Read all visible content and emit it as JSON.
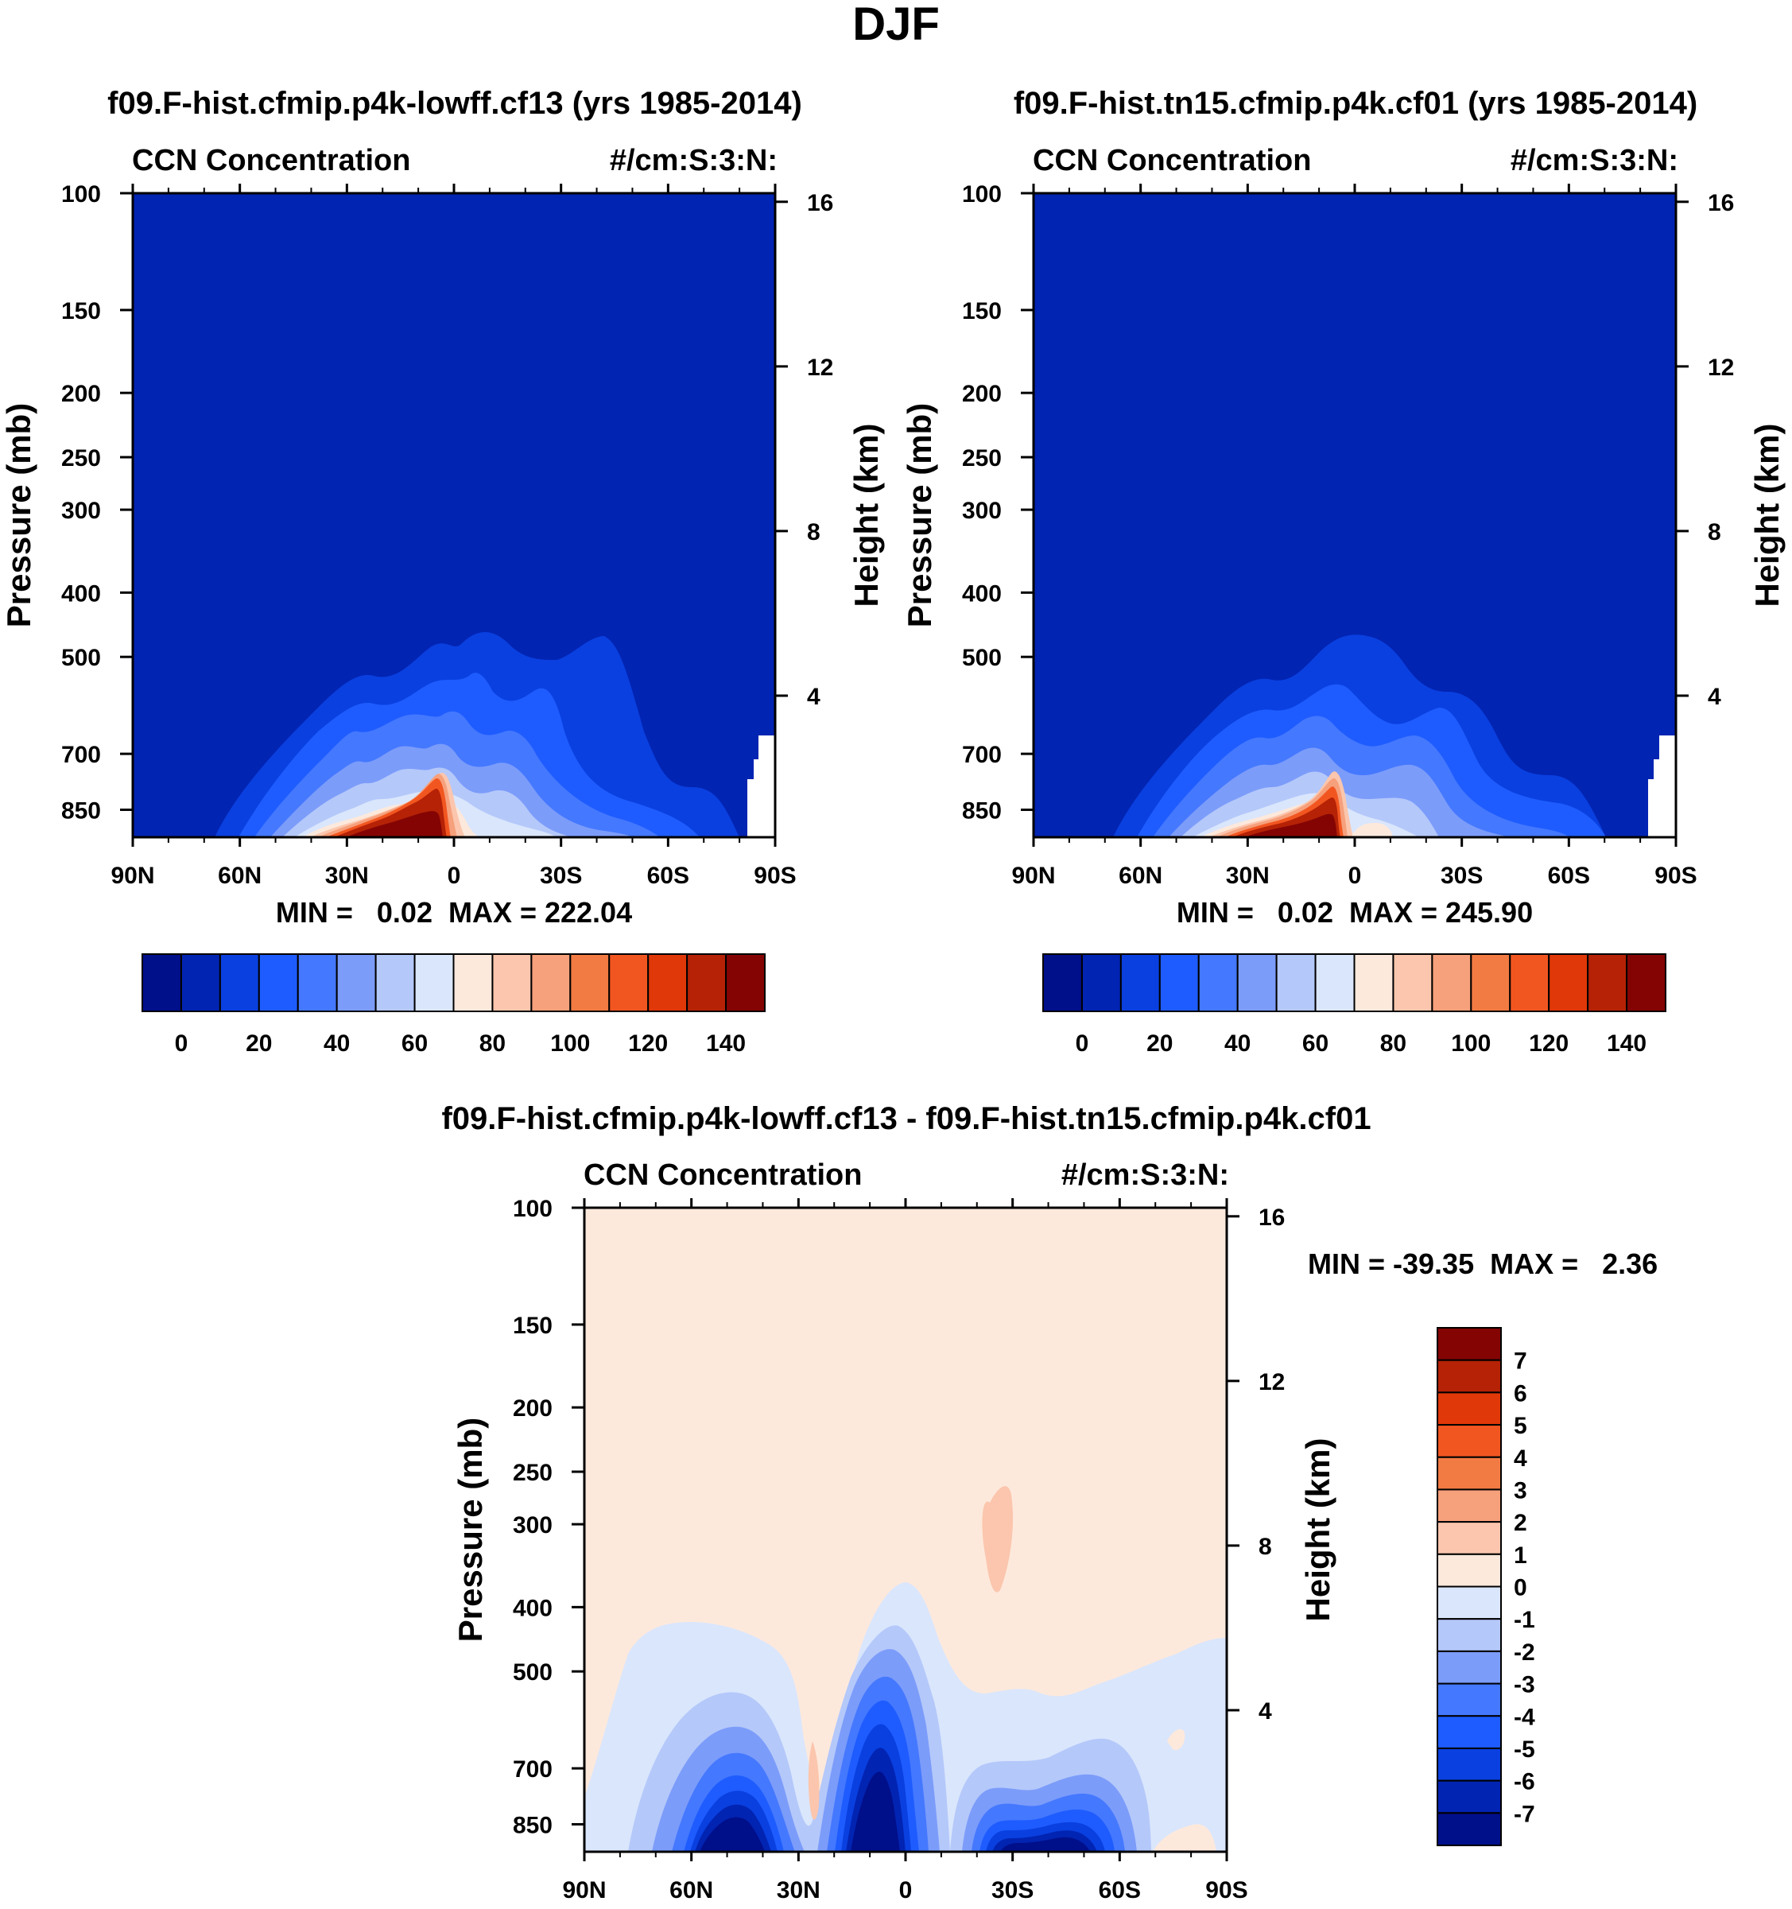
{
  "page_title": "DJF",
  "colors": {
    "abs_levels": [
      "#000f8a",
      "#0224b2",
      "#0a40e0",
      "#1e5cff",
      "#4478ff",
      "#7c9cfa",
      "#b4c8fa",
      "#dae6fc",
      "#fde9dc",
      "#fbc6ad",
      "#f6a07c",
      "#f27b43",
      "#f25620",
      "#e03808",
      "#b52206",
      "#840404"
    ],
    "diff_levels": [
      "#000f8a",
      "#0224b2",
      "#0a40e0",
      "#1e5cff",
      "#4478ff",
      "#7c9cfa",
      "#b4c8fa",
      "#dae6fc",
      "#fde9dc",
      "#fbc6ad",
      "#f6a07c",
      "#f27b43",
      "#f25620",
      "#e03808",
      "#b52206",
      "#840404"
    ]
  },
  "chart_data": [
    {
      "type": "contour",
      "title": "f09.F-hist.cfmip.p4k-lowff.cf13 (yrs 1985-2014)",
      "left_string": "CCN Concentration",
      "right_string": "#/cm:S:3:N:",
      "ylabel": "Pressure (mb)",
      "ylabel_right": "Height (km)",
      "x_ticks": [
        "90N",
        "60N",
        "30N",
        "0",
        "30S",
        "60S",
        "90S"
      ],
      "y_ticks": [
        "100",
        "150",
        "200",
        "250",
        "300",
        "400",
        "500",
        "700",
        "850"
      ],
      "y_ticks_right": [
        "16",
        "12",
        "8",
        "4"
      ],
      "stats": "MIN =   0.02  MAX = 222.04",
      "colorbar_labels": [
        "0",
        "20",
        "40",
        "60",
        "80",
        "100",
        "120",
        "140"
      ],
      "ylim": [
        1000,
        100
      ],
      "xlim": [
        90,
        -90
      ]
    },
    {
      "type": "contour",
      "title": "f09.F-hist.tn15.cfmip.p4k.cf01 (yrs 1985-2014)",
      "left_string": "CCN Concentration",
      "right_string": "#/cm:S:3:N:",
      "ylabel": "Pressure (mb)",
      "ylabel_right": "Height (km)",
      "x_ticks": [
        "90N",
        "60N",
        "30N",
        "0",
        "30S",
        "60S",
        "90S"
      ],
      "y_ticks": [
        "100",
        "150",
        "200",
        "250",
        "300",
        "400",
        "500",
        "700",
        "850"
      ],
      "y_ticks_right": [
        "16",
        "12",
        "8",
        "4"
      ],
      "stats": "MIN =   0.02  MAX = 245.90",
      "colorbar_labels": [
        "0",
        "20",
        "40",
        "60",
        "80",
        "100",
        "120",
        "140"
      ],
      "ylim": [
        1000,
        100
      ],
      "xlim": [
        90,
        -90
      ]
    },
    {
      "type": "contour",
      "title": "f09.F-hist.cfmip.p4k-lowff.cf13 - f09.F-hist.tn15.cfmip.p4k.cf01",
      "left_string": "CCN Concentration",
      "right_string": "#/cm:S:3:N:",
      "ylabel": "Pressure (mb)",
      "ylabel_right": "Height (km)",
      "x_ticks": [
        "90N",
        "60N",
        "30N",
        "0",
        "30S",
        "60S",
        "90S"
      ],
      "y_ticks": [
        "100",
        "150",
        "200",
        "250",
        "300",
        "400",
        "500",
        "700",
        "850"
      ],
      "y_ticks_right": [
        "16",
        "12",
        "8",
        "4"
      ],
      "stats": "MIN = -39.35  MAX =   2.36",
      "colorbar_labels": [
        "7",
        "6",
        "5",
        "4",
        "3",
        "2",
        "1",
        "0",
        "-1",
        "-2",
        "-3",
        "-4",
        "-5",
        "-6",
        "-7"
      ],
      "ylim": [
        1000,
        100
      ],
      "xlim": [
        90,
        -90
      ]
    }
  ]
}
